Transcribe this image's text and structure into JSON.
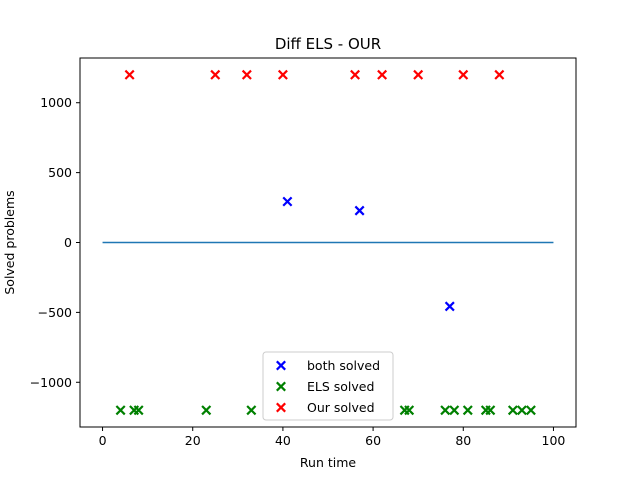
{
  "chart_data": {
    "type": "scatter",
    "title": "Diff ELS - OUR",
    "xlabel": "Run time",
    "ylabel": "Solved problems",
    "xlim": [
      -5,
      105
    ],
    "ylim": [
      -1320,
      1320
    ],
    "xticks": [
      0,
      20,
      40,
      60,
      80,
      100
    ],
    "yticks": [
      -1000,
      -500,
      0,
      500,
      1000
    ],
    "ytick_labels": [
      "−1000",
      "−500",
      "0",
      "500",
      "1000"
    ],
    "grid": false,
    "legend_position": "lower-center",
    "baseline": {
      "x": [
        0,
        100
      ],
      "y": [
        0,
        0
      ],
      "color": "#1f77b4"
    },
    "series": [
      {
        "name": "both solved",
        "color": "#0000ff",
        "marker": "x",
        "points": [
          [
            41,
            293
          ],
          [
            57,
            228
          ],
          [
            77,
            -457
          ]
        ]
      },
      {
        "name": "ELS solved",
        "color": "#008000",
        "marker": "x",
        "points": [
          [
            4,
            -1200
          ],
          [
            7,
            -1200
          ],
          [
            8,
            -1200
          ],
          [
            23,
            -1200
          ],
          [
            33,
            -1200
          ],
          [
            67,
            -1200
          ],
          [
            68,
            -1200
          ],
          [
            76,
            -1200
          ],
          [
            78,
            -1200
          ],
          [
            81,
            -1200
          ],
          [
            85,
            -1200
          ],
          [
            86,
            -1200
          ],
          [
            91,
            -1200
          ],
          [
            93,
            -1200
          ],
          [
            95,
            -1200
          ]
        ]
      },
      {
        "name": "Our solved",
        "color": "#ff0000",
        "marker": "x",
        "points": [
          [
            6,
            1200
          ],
          [
            25,
            1200
          ],
          [
            32,
            1200
          ],
          [
            40,
            1200
          ],
          [
            56,
            1200
          ],
          [
            62,
            1200
          ],
          [
            70,
            1200
          ],
          [
            80,
            1200
          ],
          [
            88,
            1200
          ]
        ]
      }
    ]
  }
}
